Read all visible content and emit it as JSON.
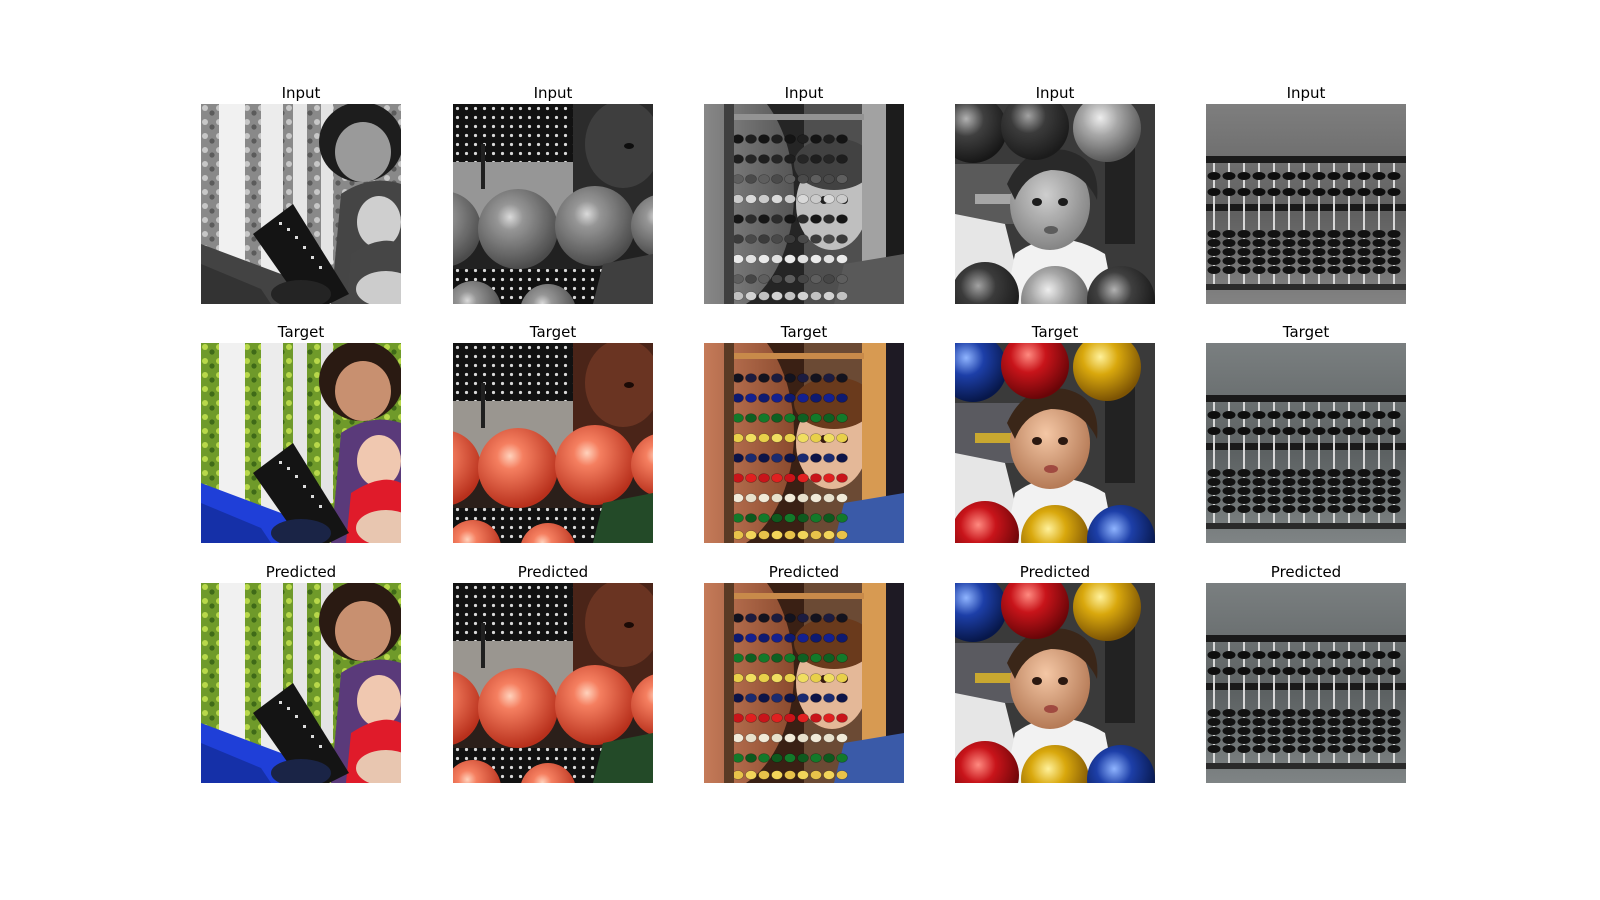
{
  "rows": [
    {
      "key": "input",
      "title": "Input"
    },
    {
      "key": "target",
      "title": "Target"
    },
    {
      "key": "predicted",
      "title": "Predicted"
    }
  ],
  "columns": [
    {
      "key": "grandma",
      "subject": "woman and baby holding a black abacus by a white fence"
    },
    {
      "key": "orange-balls",
      "subject": "close-up of large orange abacus beads"
    },
    {
      "key": "colorful-abacus",
      "subject": "child peeking through a colorful bead abacus"
    },
    {
      "key": "boy-balls",
      "subject": "boy surrounded by red, blue and yellow balls"
    },
    {
      "key": "black-abacus",
      "subject": "black beaded abacus on gray background"
    }
  ],
  "panels": [
    {
      "row": 0,
      "col": 0,
      "title": "Input"
    },
    {
      "row": 0,
      "col": 1,
      "title": "Input"
    },
    {
      "row": 0,
      "col": 2,
      "title": "Input"
    },
    {
      "row": 0,
      "col": 3,
      "title": "Input"
    },
    {
      "row": 0,
      "col": 4,
      "title": "Input"
    },
    {
      "row": 1,
      "col": 0,
      "title": "Target"
    },
    {
      "row": 1,
      "col": 1,
      "title": "Target"
    },
    {
      "row": 1,
      "col": 2,
      "title": "Target"
    },
    {
      "row": 1,
      "col": 3,
      "title": "Target"
    },
    {
      "row": 1,
      "col": 4,
      "title": "Target"
    },
    {
      "row": 2,
      "col": 0,
      "title": "Predicted"
    },
    {
      "row": 2,
      "col": 1,
      "title": "Predicted"
    },
    {
      "row": 2,
      "col": 2,
      "title": "Predicted"
    },
    {
      "row": 2,
      "col": 3,
      "title": "Predicted"
    },
    {
      "row": 2,
      "col": 4,
      "title": "Predicted"
    }
  ],
  "colors": {
    "background": "#ffffff",
    "title_text": "#000000"
  }
}
